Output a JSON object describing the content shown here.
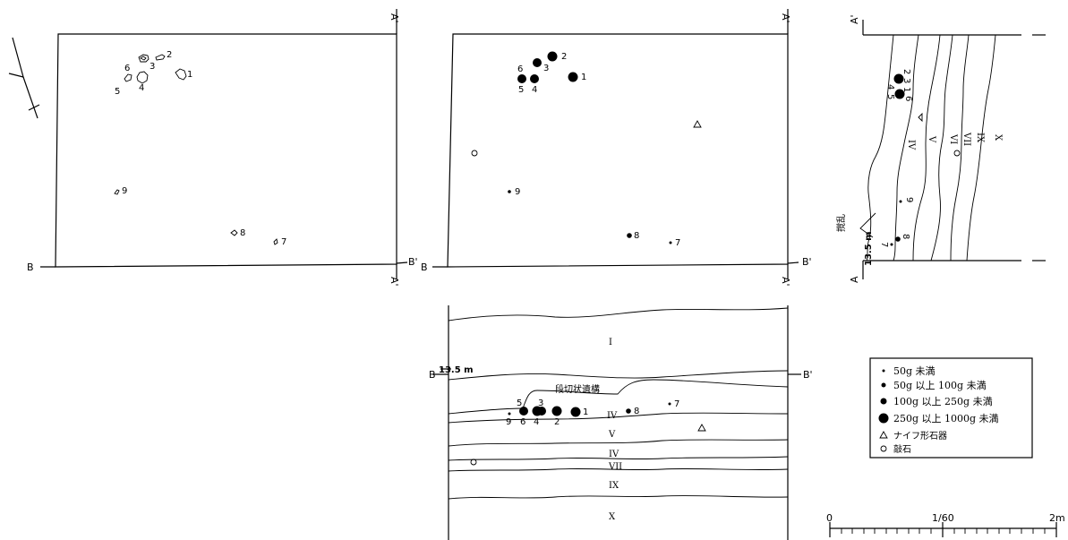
{
  "plan_stones": {
    "labels": {
      "n1": "1",
      "n2": "2",
      "n3": "3",
      "n4": "4",
      "n5": "5",
      "n6": "6",
      "n7": "7",
      "n8": "8",
      "n9": "9"
    },
    "corner_a": "A'",
    "corner_a2": "A'",
    "corner_b": "B",
    "corner_b2": "B'"
  },
  "plan_weights": {
    "labels": {
      "n1": "1",
      "n2": "2",
      "n3": "3",
      "n4": "4",
      "n5": "5",
      "n6": "6",
      "n7": "7",
      "n8": "8",
      "n9": "9"
    },
    "corner_a": "A'",
    "corner_a2": "A'",
    "corner_b": "B",
    "corner_b2": "B'"
  },
  "section_a": {
    "top_label": "A'",
    "bottom_label": "A",
    "elevation": "13.5 m",
    "disturbance": "撹乱",
    "layers": [
      "IV",
      "V",
      "VI",
      "VII",
      "IX",
      "X"
    ],
    "labels": {
      "n1": "1",
      "n2": "2",
      "n3": "3",
      "n4": "4",
      "n5": "5",
      "n6": "6",
      "n7": "7",
      "n8": "8",
      "n9": "9"
    }
  },
  "section_b": {
    "left_label": "B",
    "right_label": "B'",
    "elevation": "13.5 m",
    "feature": "段切状遺構",
    "layers": {
      "l1": "I",
      "l4a": "IV",
      "l5": "V",
      "l4b": "IV",
      "l7": "VII",
      "l9": "IX",
      "l10": "X"
    },
    "labels": {
      "n1": "1",
      "n2": "2",
      "n3": "3",
      "n4": "4",
      "n5": "5",
      "n6": "6",
      "n7": "7",
      "n8": "8",
      "n9": "9"
    }
  },
  "legend": {
    "items": [
      {
        "symbol": "dot-xs",
        "label": "50g 未満"
      },
      {
        "symbol": "dot-s",
        "label": "50g 以上 100g 未満"
      },
      {
        "symbol": "dot-m",
        "label": "100g 以上 250g 未満"
      },
      {
        "symbol": "dot-l",
        "label": "250g 以上 1000g 未満"
      },
      {
        "symbol": "triangle",
        "label": "ナイフ形石器"
      },
      {
        "symbol": "circle",
        "label": "敲石"
      }
    ]
  },
  "scale": {
    "start": "0",
    "ratio": "1/60",
    "end": "2m"
  }
}
